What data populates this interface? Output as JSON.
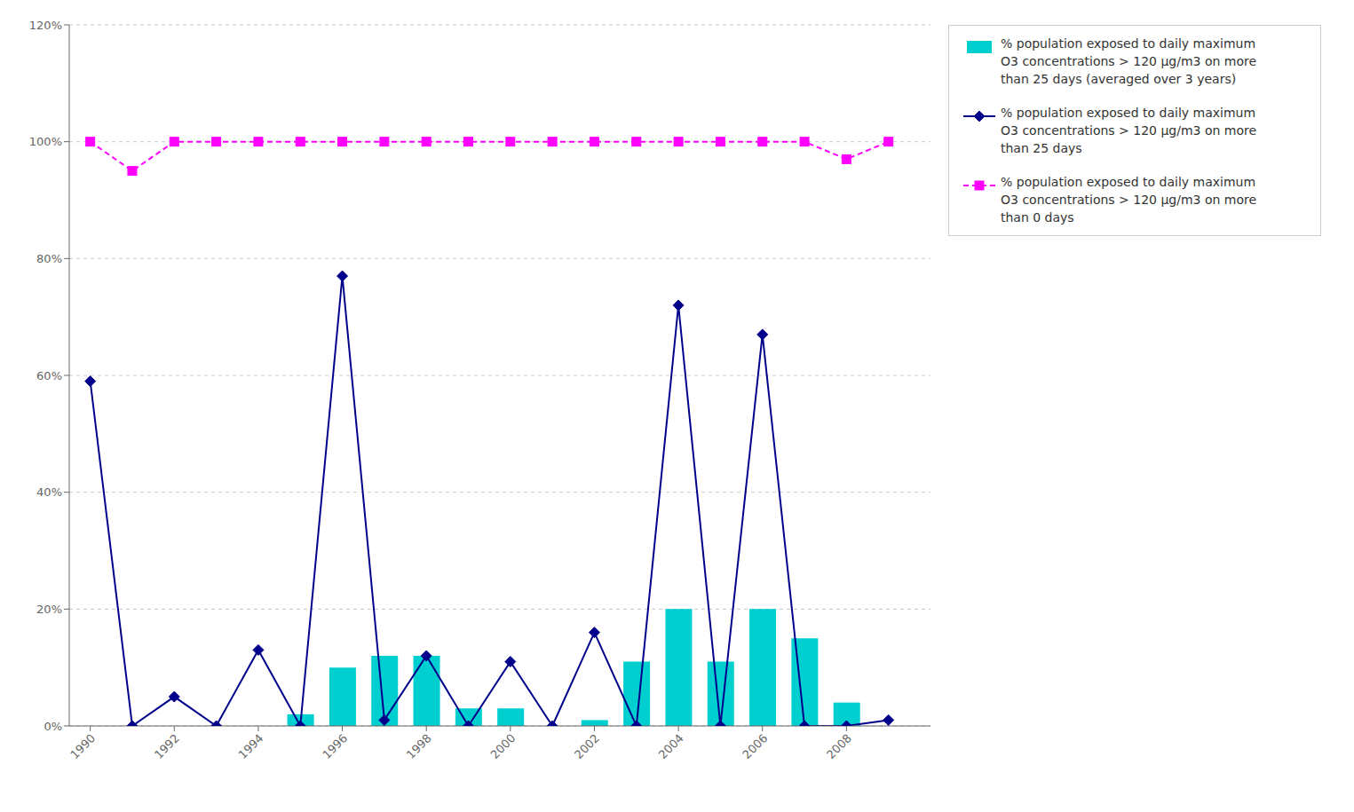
{
  "chart_data": {
    "type": "combo",
    "series": [
      {
        "name": "% population exposed to daily maximum\nO3 concentrations > 120 μg/m3 on more\nthan 25 days (averaged over 3 years)",
        "type": "bar",
        "color": "#00CFCF",
        "x": [
          1995,
          1996,
          1997,
          1998,
          1999,
          2000,
          2001,
          2002,
          2003,
          2004,
          2005,
          2006,
          2007,
          2008
        ],
        "values": [
          0.02,
          0.1,
          0.12,
          0.12,
          0.03,
          0.03,
          0.0,
          0.01,
          0.11,
          0.2,
          0.11,
          0.2,
          0.15,
          0.04
        ]
      },
      {
        "name": "% population exposed to daily maximum\nO3 concentrations > 120 μg/m3 on more\nthan 25 days",
        "type": "line",
        "color": "#00008B",
        "marker": "diamond",
        "line_style": "solid",
        "x": [
          1990,
          1991,
          1992,
          1993,
          1994,
          1995,
          1996,
          1997,
          1998,
          1999,
          2000,
          2001,
          2002,
          2003,
          2004,
          2005,
          2006,
          2007,
          2008,
          2009
        ],
        "values": [
          0.59,
          0.0,
          0.05,
          0.0,
          0.13,
          0.0,
          0.77,
          0.01,
          0.12,
          0.0,
          0.11,
          0.0,
          0.16,
          0.0,
          0.72,
          0.0,
          0.67,
          0.0,
          0.0,
          0.01
        ]
      },
      {
        "name": "% population exposed to daily maximum\nO3 concentrations > 120 μg/m3 on more\nthan 0 days",
        "type": "line",
        "color": "#FF00FF",
        "marker": "square",
        "line_style": "dashed",
        "x": [
          1990,
          1991,
          1992,
          1993,
          1994,
          1995,
          1996,
          1997,
          1998,
          1999,
          2000,
          2001,
          2002,
          2003,
          2004,
          2005,
          2006,
          2007,
          2008,
          2009
        ],
        "values": [
          1.0,
          0.95,
          1.0,
          1.0,
          1.0,
          1.0,
          1.0,
          1.0,
          1.0,
          1.0,
          1.0,
          1.0,
          1.0,
          1.0,
          1.0,
          1.0,
          1.0,
          1.0,
          0.97,
          1.0
        ]
      }
    ],
    "xlim": [
      1989.5,
      2010.0
    ],
    "xticks": [
      1990,
      1992,
      1994,
      1996,
      1998,
      2000,
      2002,
      2004,
      2006,
      2008
    ],
    "ylim": [
      0,
      1.2
    ],
    "yticks": [
      {
        "value": 0.0,
        "label": "0%"
      },
      {
        "value": 0.2,
        "label": "20%"
      },
      {
        "value": 0.4,
        "label": "40%"
      },
      {
        "value": 0.6,
        "label": "60%"
      },
      {
        "value": 0.8,
        "label": "80%"
      },
      {
        "value": 1.0,
        "label": "100%"
      },
      {
        "value": 1.2,
        "label": "120%"
      }
    ],
    "grid": true,
    "legend": "right"
  }
}
